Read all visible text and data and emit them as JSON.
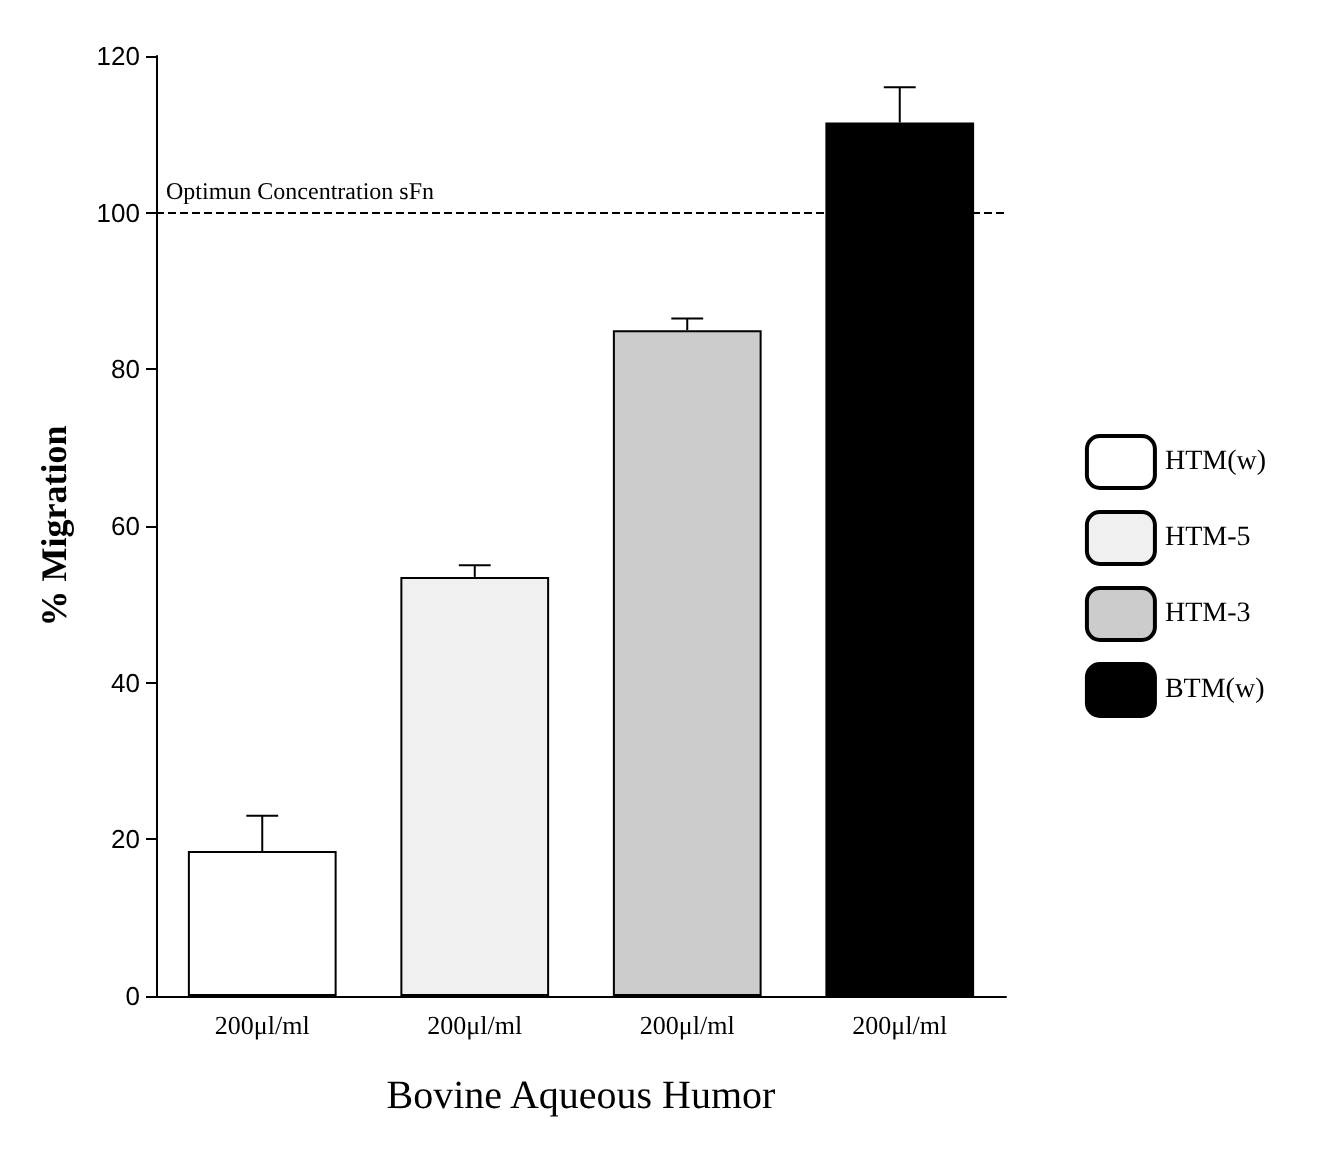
{
  "chart_data": {
    "type": "bar",
    "xlabel": "Bovine Aqueous Humor",
    "ylabel": "% Migration",
    "categories": [
      "200μl/ml",
      "200μl/ml",
      "200μl/ml",
      "200μl/ml"
    ],
    "series": [
      {
        "name": "HTM(w)",
        "color": "#ffffff",
        "values": [
          18.5,
          null,
          null,
          null
        ],
        "errors": [
          [
            18.5,
            23
          ],
          null,
          null,
          null
        ]
      },
      {
        "name": "HTM-5",
        "color": "#f0f0f0",
        "values": [
          null,
          53.5,
          null,
          null
        ],
        "errors": [
          null,
          [
            53.5,
            55
          ],
          null,
          null
        ]
      },
      {
        "name": "HTM-3",
        "color": "#cccccc",
        "values": [
          null,
          null,
          85,
          null
        ],
        "errors": [
          null,
          null,
          [
            85,
            86.5
          ],
          null
        ]
      },
      {
        "name": "BTM(w)",
        "color": "#000000",
        "values": [
          null,
          null,
          null,
          111.5
        ],
        "errors": [
          null,
          null,
          null,
          [
            111.5,
            116
          ]
        ]
      }
    ],
    "ylim": [
      0,
      120
    ],
    "yticks": [
      0,
      20,
      40,
      60,
      80,
      100,
      120
    ],
    "grid": false,
    "legend": "right",
    "ref_lines": [
      {
        "axis": "y",
        "value": 100,
        "label": "Optimun Concentration sFn",
        "color": "#000000",
        "line_style": "dashed"
      }
    ]
  }
}
